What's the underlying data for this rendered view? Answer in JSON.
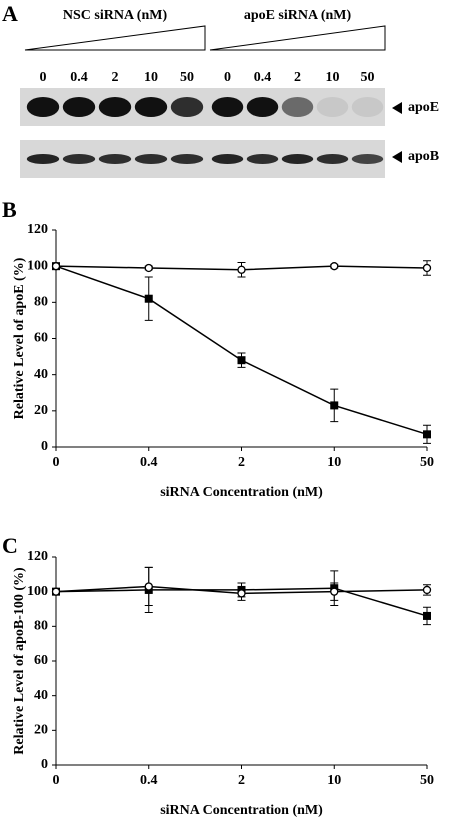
{
  "blot": {
    "panel_label": "A",
    "groups": [
      {
        "title": "NSC siRNA (nM)",
        "concentrations": [
          "0",
          "0.4",
          "2",
          "10",
          "50"
        ]
      },
      {
        "title": "apoE siRNA (nM)",
        "concentrations": [
          "0",
          "0.4",
          "2",
          "10",
          "50"
        ]
      }
    ],
    "bands": [
      "apoE",
      "apoB"
    ]
  },
  "chart_data": [
    {
      "type": "line",
      "panel_label": "B",
      "y_label": "Relative Level of apoE (%)",
      "x_label": "siRNA Concentration (nM)",
      "categories": [
        "0",
        "0.4",
        "2",
        "10",
        "50"
      ],
      "ylim": [
        0,
        120
      ],
      "yticks": [
        0,
        20,
        40,
        60,
        80,
        100,
        120
      ],
      "series": [
        {
          "marker": "square",
          "color": "#000000",
          "values": [
            100,
            82,
            48,
            23,
            7
          ],
          "errors": [
            0,
            12,
            4,
            9,
            5
          ]
        },
        {
          "marker": "circle",
          "color": "#000000",
          "values": [
            100,
            99,
            98,
            100,
            99
          ],
          "errors": [
            0,
            1,
            4,
            1,
            4
          ]
        }
      ]
    },
    {
      "type": "line",
      "panel_label": "C",
      "y_label": "Relative Level of apoB-100 (%)",
      "x_label": "siRNA Concentration (nM)",
      "categories": [
        "0",
        "0.4",
        "2",
        "10",
        "50"
      ],
      "ylim": [
        0,
        120
      ],
      "yticks": [
        0,
        20,
        40,
        60,
        80,
        100,
        120
      ],
      "series": [
        {
          "marker": "square",
          "color": "#000000",
          "values": [
            100,
            101,
            101,
            102,
            86
          ],
          "errors": [
            0,
            13,
            4,
            10,
            5
          ]
        },
        {
          "marker": "circle",
          "color": "#000000",
          "values": [
            100,
            103,
            99,
            100,
            101
          ],
          "errors": [
            0,
            11,
            4,
            5,
            3
          ]
        }
      ]
    }
  ]
}
